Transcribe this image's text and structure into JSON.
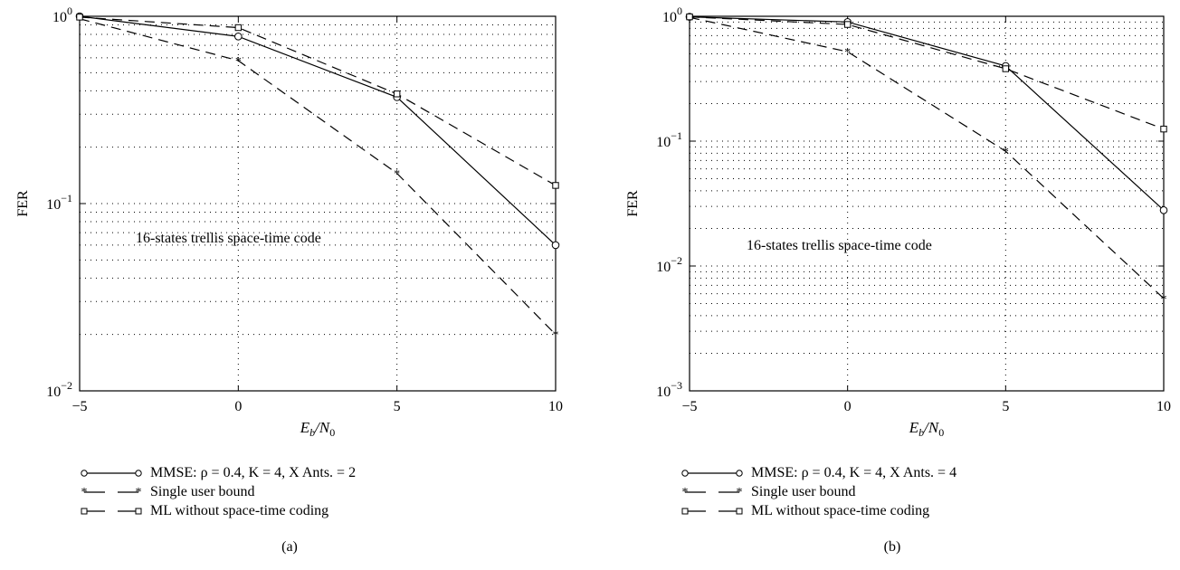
{
  "chart_data": [
    {
      "type": "line",
      "panel_label": "(a)",
      "xlabel_main": "E",
      "xlabel_sub": "b",
      "xlabel_mid": "/N",
      "xlabel_sub2": "0",
      "ylabel": "FER",
      "yscale": "log",
      "xlim": [
        -5,
        10
      ],
      "ylim": [
        0.01,
        1
      ],
      "x_ticks": [
        -5,
        0,
        5,
        10
      ],
      "x_tick_labels": [
        "−5",
        "0",
        "5",
        "10"
      ],
      "y_ticks": [
        0.01,
        0.1,
        1
      ],
      "y_tick_labels": [
        {
          "base": "10",
          "exp": "−2"
        },
        {
          "base": "10",
          "exp": "−1"
        },
        {
          "base": "10",
          "exp": "0"
        }
      ],
      "annotation": "16-states trellis space-time code",
      "grid": true,
      "series": [
        {
          "name": "MMSE: ρ = 0.4, K = 4, X Ants. = 2",
          "style": "solid",
          "marker": "circle",
          "x": [
            -5,
            0,
            5,
            10
          ],
          "y": [
            1.0,
            0.78,
            0.37,
            0.06
          ]
        },
        {
          "name": "Single user bound",
          "style": "dashed",
          "marker": "star",
          "x": [
            -5,
            0,
            5,
            10
          ],
          "y": [
            0.97,
            0.58,
            0.145,
            0.02
          ]
        },
        {
          "name": "ML without space-time coding",
          "style": "dashed",
          "marker": "square",
          "x": [
            -5,
            0,
            5,
            10
          ],
          "y": [
            0.99,
            0.87,
            0.385,
            0.125
          ]
        }
      ]
    },
    {
      "type": "line",
      "panel_label": "(b)",
      "xlabel_main": "E",
      "xlabel_sub": "b",
      "xlabel_mid": "/N",
      "xlabel_sub2": "0",
      "ylabel": "FER",
      "yscale": "log",
      "xlim": [
        -5,
        10
      ],
      "ylim": [
        0.001,
        1
      ],
      "x_ticks": [
        -5,
        0,
        5,
        10
      ],
      "x_tick_labels": [
        "−5",
        "0",
        "5",
        "10"
      ],
      "y_ticks": [
        0.001,
        0.01,
        0.1,
        1
      ],
      "y_tick_labels": [
        {
          "base": "10",
          "exp": "−3"
        },
        {
          "base": "10",
          "exp": "−2"
        },
        {
          "base": "10",
          "exp": "−1"
        },
        {
          "base": "10",
          "exp": "0"
        }
      ],
      "annotation": "16-states trellis space-time code",
      "grid": true,
      "series": [
        {
          "name": "MMSE: ρ = 0.4, K = 4, X Ants. = 4",
          "style": "solid",
          "marker": "circle",
          "x": [
            -5,
            0,
            5,
            10
          ],
          "y": [
            0.99,
            0.9,
            0.4,
            0.028
          ]
        },
        {
          "name": "Single user bound",
          "style": "dashed",
          "marker": "star",
          "x": [
            -5,
            0,
            5,
            10
          ],
          "y": [
            0.98,
            0.52,
            0.083,
            0.0055
          ]
        },
        {
          "name": "ML without space-time coding",
          "style": "dashed",
          "marker": "square",
          "x": [
            -5,
            0,
            5,
            10
          ],
          "y": [
            0.99,
            0.86,
            0.38,
            0.125
          ]
        }
      ]
    }
  ]
}
